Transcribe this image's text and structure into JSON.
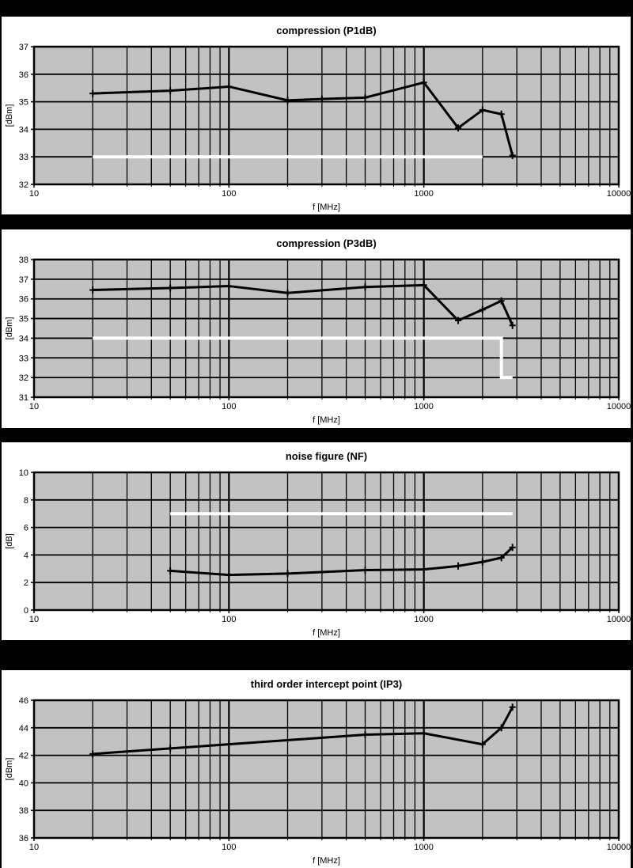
{
  "page": {
    "background": "#000000",
    "panel_background": "#ffffff"
  },
  "style": {
    "plot_bg": "#c2c2c2",
    "grid_color": "#000000",
    "line_color": "#000000",
    "limit_color": "#ffffff",
    "text_color": "#000000"
  },
  "chart_data": [
    {
      "type": "line",
      "title": "compression (P1dB)",
      "xlabel": "f [MHz]",
      "ylabel": "[dBm]",
      "x_scale": "log",
      "xlim": [
        10,
        10000
      ],
      "x_ticks": [
        10,
        100,
        1000,
        10000
      ],
      "ylim": [
        32,
        37
      ],
      "y_ticks": [
        32,
        33,
        34,
        35,
        36,
        37
      ],
      "grid": true,
      "legend": "none",
      "series": [
        {
          "name": "P1dB",
          "x": [
            20,
            50,
            100,
            200,
            300,
            500,
            1000,
            1500,
            2000,
            2500,
            2850
          ],
          "y": [
            35.3,
            35.4,
            35.55,
            35.05,
            35.1,
            35.15,
            35.7,
            34.05,
            34.7,
            34.55,
            33.05
          ]
        }
      ],
      "limit_line": {
        "name": "spec-limit",
        "points": [
          [
            20,
            33
          ],
          [
            2000,
            33
          ]
        ]
      }
    },
    {
      "type": "line",
      "title": "compression (P3dB)",
      "xlabel": "f [MHz]",
      "ylabel": "[dBm]",
      "x_scale": "log",
      "xlim": [
        10,
        10000
      ],
      "x_ticks": [
        10,
        100,
        1000,
        10000
      ],
      "ylim": [
        31,
        38
      ],
      "y_ticks": [
        31,
        32,
        33,
        34,
        35,
        36,
        37,
        38
      ],
      "grid": true,
      "legend": "none",
      "series": [
        {
          "name": "P3dB",
          "x": [
            20,
            50,
            100,
            200,
            500,
            1000,
            1500,
            2000,
            2500,
            2850
          ],
          "y": [
            36.45,
            36.55,
            36.65,
            36.3,
            36.6,
            36.7,
            34.9,
            35.45,
            35.9,
            34.65
          ]
        }
      ],
      "limit_line": {
        "name": "spec-limit",
        "points": [
          [
            20,
            34
          ],
          [
            2500,
            34
          ],
          [
            2500,
            32
          ],
          [
            2850,
            32
          ]
        ]
      }
    },
    {
      "type": "line",
      "title": "noise figure (NF)",
      "xlabel": "f [MHz]",
      "ylabel": "[dB]",
      "x_scale": "log",
      "xlim": [
        10,
        10000
      ],
      "x_ticks": [
        10,
        100,
        1000,
        10000
      ],
      "ylim": [
        0,
        10
      ],
      "y_ticks": [
        0,
        2,
        4,
        6,
        8,
        10
      ],
      "grid": true,
      "legend": "none",
      "series": [
        {
          "name": "NF",
          "x": [
            50,
            100,
            200,
            500,
            1000,
            1500,
            2000,
            2500,
            2850
          ],
          "y": [
            2.85,
            2.55,
            2.65,
            2.9,
            2.95,
            3.2,
            3.5,
            3.8,
            4.55
          ]
        }
      ],
      "limit_line": {
        "name": "spec-limit",
        "points": [
          [
            50,
            7
          ],
          [
            2850,
            7
          ]
        ]
      }
    },
    {
      "type": "line",
      "title": "third order intercept point (IP3)",
      "xlabel": "f [MHz]",
      "ylabel": "[dBm]",
      "x_scale": "log",
      "xlim": [
        10,
        10000
      ],
      "x_ticks": [
        10,
        100,
        1000,
        10000
      ],
      "ylim": [
        36,
        46
      ],
      "y_ticks": [
        36,
        38,
        40,
        42,
        44,
        46
      ],
      "grid": true,
      "legend": "none",
      "series": [
        {
          "name": "IP3",
          "x": [
            20,
            50,
            100,
            500,
            1000,
            2000,
            2500,
            2850
          ],
          "y": [
            42.1,
            42.5,
            42.8,
            43.5,
            43.6,
            42.8,
            44.0,
            45.5
          ]
        }
      ]
    }
  ]
}
